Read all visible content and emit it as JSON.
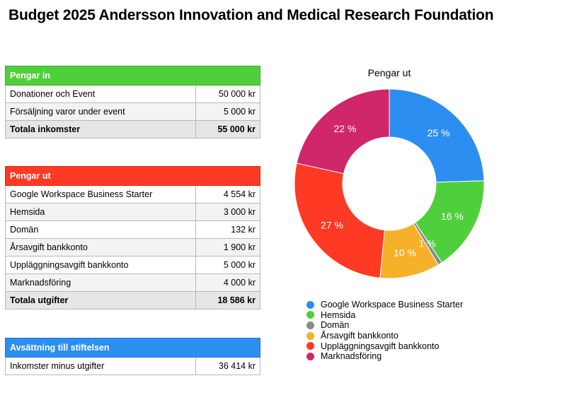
{
  "title": "Budget 2025 Andersson Innovation and Medical Research Foundation",
  "income": {
    "header": "Pengar in",
    "rows": [
      {
        "label": "Donationer och Event",
        "value": "50 000 kr"
      },
      {
        "label": "Försäljning varor under event",
        "value": "5 000 kr"
      }
    ],
    "total": {
      "label": "Totala inkomster",
      "value": "55 000 kr"
    },
    "colors": {
      "header": "#4fcf3b"
    }
  },
  "expenses": {
    "header": "Pengar ut",
    "rows": [
      {
        "label": "Google Workspace Business Starter",
        "value": "4 554 kr"
      },
      {
        "label": "Hemsida",
        "value": "3 000 kr"
      },
      {
        "label": "Domän",
        "value": "132 kr"
      },
      {
        "label": "Årsavgift bankkonto",
        "value": "1 900 kr"
      },
      {
        "label": "Uppläggningsavgift bankkonto",
        "value": "5 000 kr"
      },
      {
        "label": "Marknadsföring",
        "value": "4 000 kr"
      }
    ],
    "total": {
      "label": "Totala utgifter",
      "value": "18 586 kr"
    },
    "colors": {
      "header": "#ff3a24"
    }
  },
  "allocation": {
    "header": "Avsättning till stiftelsen",
    "rows": [
      {
        "label": "Inkomster minus utgifter",
        "value": "36 414 kr"
      }
    ],
    "colors": {
      "header": "#2c8ef0"
    }
  },
  "chart_data": {
    "type": "pie",
    "title": "Pengar ut",
    "donut": true,
    "legend_position": "bottom",
    "categories": [
      "Google Workspace Business Starter",
      "Hemsida",
      "Domän",
      "Årsavgift bankkonto",
      "Uppläggningsavgift bankkonto",
      "Marknadsföring"
    ],
    "values": [
      4554,
      3000,
      132,
      1900,
      5000,
      4000
    ],
    "labels": [
      "25 %",
      "16 %",
      "1 %",
      "10 %",
      "27 %",
      "22 %"
    ],
    "colors": [
      "#2c8ef0",
      "#4fcf3b",
      "#8a8a8a",
      "#f5b12a",
      "#ff3a24",
      "#d0266a"
    ]
  }
}
